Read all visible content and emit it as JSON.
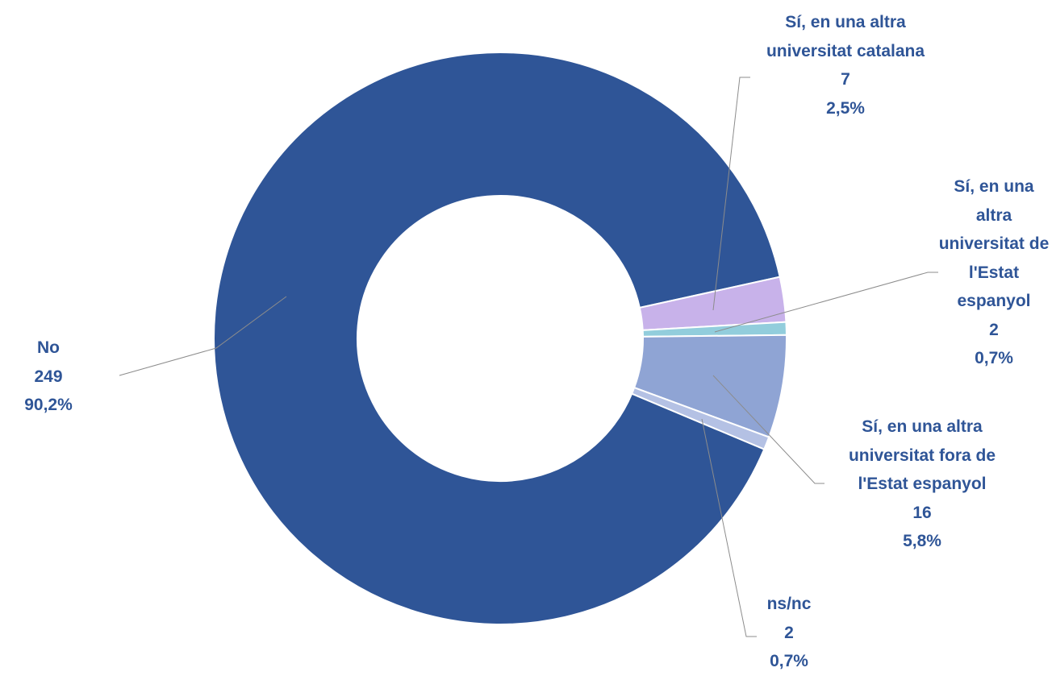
{
  "chart_data": {
    "type": "donut",
    "categories": [
      "No",
      "Sí, en una altra universitat catalana",
      "Sí, en una altra universitat de l'Estat espanyol",
      "Sí, en una altra universitat fora de l'Estat espanyol",
      "ns/nc"
    ],
    "values": [
      249,
      7,
      2,
      16,
      2
    ],
    "percentages": [
      90.2,
      2.5,
      0.7,
      5.8,
      0.7
    ],
    "percentage_labels": [
      "90,2%",
      "2,5%",
      "0,7%",
      "5,8%",
      "0,7%"
    ],
    "colors": [
      "#2f5597",
      "#c8b2ea",
      "#92cddc",
      "#8fa4d4",
      "#b4c1e4"
    ]
  }
}
